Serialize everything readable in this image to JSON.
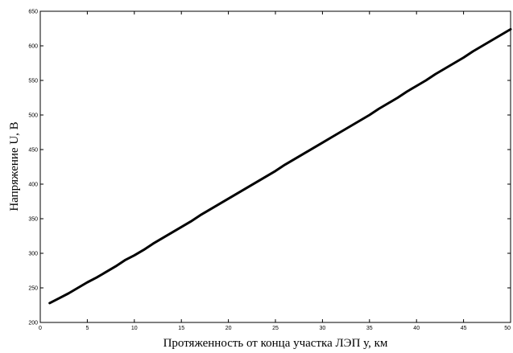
{
  "chart_data": {
    "type": "line",
    "title": "",
    "xlabel": "Протяженность от конца участка ЛЭП у, км",
    "ylabel": "Напряжение U, В",
    "xlim": [
      0,
      50
    ],
    "ylim": [
      200,
      650
    ],
    "xticks": [
      0,
      5,
      10,
      15,
      20,
      25,
      30,
      35,
      40,
      45,
      50
    ],
    "yticks": [
      200,
      250,
      300,
      350,
      400,
      450,
      500,
      550,
      600,
      650
    ],
    "grid": false,
    "legend": "none",
    "line_color": "#000000",
    "series": [
      {
        "x": [
          1,
          2,
          3,
          4,
          5,
          6,
          7,
          8,
          9,
          10,
          11,
          12,
          13,
          14,
          15,
          16,
          17,
          18,
          19,
          20,
          21,
          22,
          23,
          24,
          25,
          26,
          27,
          28,
          29,
          30,
          31,
          32,
          33,
          34,
          35,
          36,
          37,
          38,
          39,
          40,
          41,
          42,
          43,
          44,
          45,
          46,
          47,
          48,
          49,
          50
        ],
        "values": [
          228,
          235,
          242,
          250,
          258,
          265,
          273,
          281,
          290,
          297,
          305,
          314,
          322,
          330,
          338,
          346,
          355,
          363,
          371,
          379,
          387,
          395,
          403,
          411,
          419,
          428,
          436,
          444,
          452,
          460,
          468,
          476,
          484,
          492,
          500,
          509,
          517,
          525,
          534,
          542,
          550,
          559,
          567,
          575,
          583,
          592,
          600,
          608,
          616,
          624
        ]
      }
    ]
  }
}
